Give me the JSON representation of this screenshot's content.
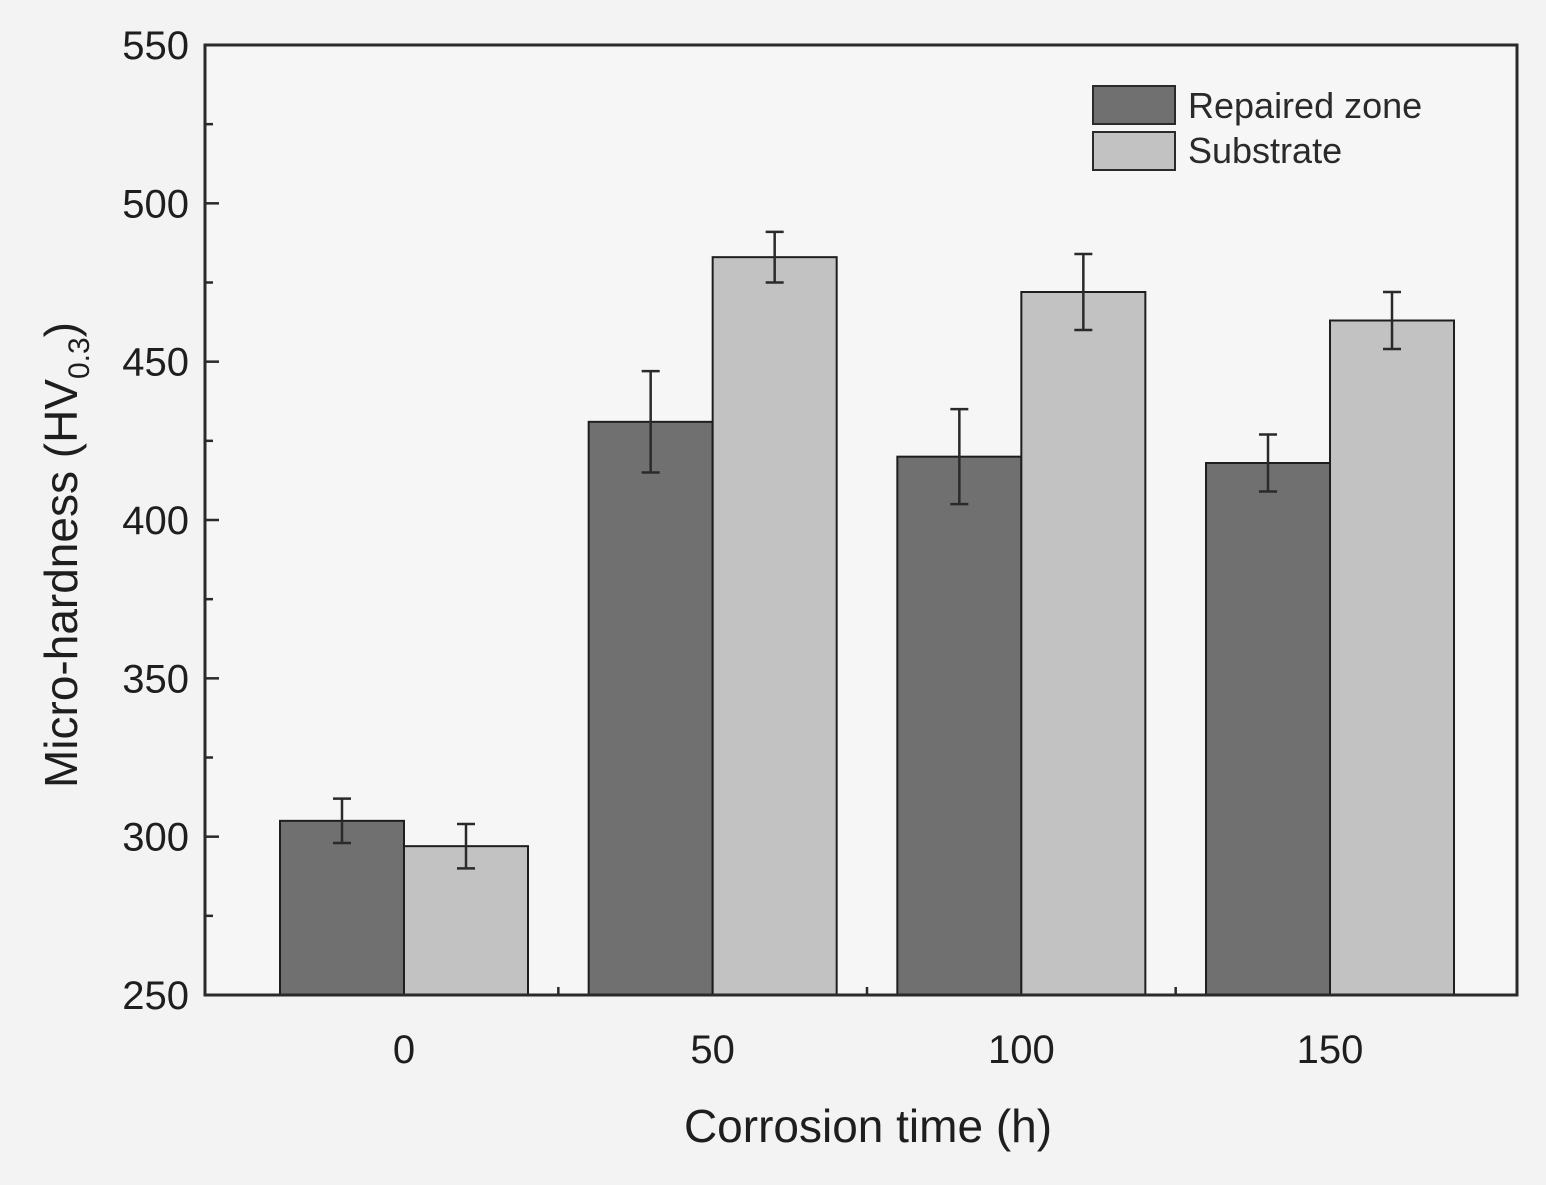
{
  "chart_data": {
    "type": "bar",
    "title": "",
    "xlabel": "Corrosion time (h)",
    "ylabel": {
      "main": "Micro-hardness (HV",
      "subscript": "0.3",
      "close": ")"
    },
    "categories": [
      "0",
      "50",
      "100",
      "150"
    ],
    "series": [
      {
        "name": "Repaired zone",
        "color": "#707070",
        "values": [
          305,
          431,
          420,
          418
        ],
        "errors": [
          7,
          16,
          15,
          9
        ]
      },
      {
        "name": "Substrate",
        "color": "#c2c2c2",
        "values": [
          297,
          483,
          472,
          463
        ],
        "errors": [
          7,
          8,
          12,
          9
        ]
      }
    ],
    "ylim": [
      250,
      550
    ],
    "yticks": [
      "250",
      "300",
      "350",
      "400",
      "450",
      "500",
      "550"
    ],
    "yminor_step": 25,
    "legend_position": "top-right",
    "grid": false
  }
}
